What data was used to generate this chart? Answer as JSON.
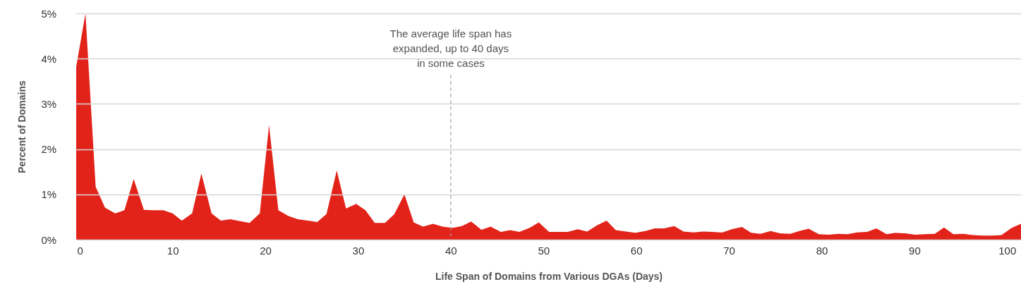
{
  "chart_data": {
    "type": "area",
    "xlabel": "Life Span of Domains from Various DGAs (Days)",
    "ylabel": "Percent of Domains",
    "x": [
      -0.4,
      0.6,
      1.7,
      2.7,
      3.8,
      4.8,
      5.8,
      6.9,
      7.9,
      9.0,
      10.0,
      11.0,
      12.1,
      13.1,
      14.2,
      15.2,
      16.2,
      17.3,
      18.3,
      19.4,
      20.4,
      21.4,
      22.5,
      23.5,
      24.6,
      25.6,
      26.6,
      27.7,
      28.7,
      29.8,
      30.8,
      31.8,
      32.9,
      33.9,
      35.0,
      36.0,
      37.0,
      38.1,
      39.1,
      40.2,
      41.2,
      42.2,
      43.3,
      44.3,
      45.4,
      46.4,
      47.4,
      48.5,
      49.5,
      50.6,
      51.6,
      52.6,
      53.7,
      54.7,
      55.8,
      56.8,
      57.8,
      58.9,
      59.9,
      61.0,
      62.0,
      63.0,
      64.1,
      65.1,
      66.2,
      67.2,
      68.2,
      69.3,
      70.3,
      71.4,
      72.4,
      73.4,
      74.5,
      75.5,
      76.6,
      77.6,
      78.6,
      79.7,
      80.7,
      81.8,
      82.8,
      83.8,
      84.9,
      85.9,
      87.0,
      88.0,
      89.0,
      90.1,
      91.1,
      92.2,
      93.2,
      94.2,
      95.3,
      96.3,
      97.4,
      98.4,
      99.4,
      100.5,
      101.5
    ],
    "series": [
      {
        "color": "#e2231a",
        "values": [
          3.82,
          5.0,
          1.17,
          0.71,
          0.58,
          0.65,
          1.34,
          0.66,
          0.65,
          0.65,
          0.58,
          0.42,
          0.58,
          1.46,
          0.58,
          0.42,
          0.45,
          0.41,
          0.37,
          0.58,
          2.53,
          0.65,
          0.52,
          0.45,
          0.42,
          0.39,
          0.57,
          1.53,
          0.69,
          0.79,
          0.65,
          0.37,
          0.37,
          0.56,
          1.0,
          0.38,
          0.29,
          0.35,
          0.29,
          0.26,
          0.3,
          0.4,
          0.22,
          0.29,
          0.17,
          0.21,
          0.17,
          0.26,
          0.38,
          0.17,
          0.17,
          0.17,
          0.23,
          0.18,
          0.32,
          0.42,
          0.21,
          0.18,
          0.15,
          0.19,
          0.25,
          0.25,
          0.3,
          0.18,
          0.16,
          0.18,
          0.17,
          0.16,
          0.23,
          0.28,
          0.15,
          0.13,
          0.19,
          0.14,
          0.13,
          0.19,
          0.24,
          0.12,
          0.11,
          0.13,
          0.12,
          0.16,
          0.17,
          0.25,
          0.12,
          0.15,
          0.14,
          0.11,
          0.12,
          0.13,
          0.27,
          0.12,
          0.13,
          0.1,
          0.09,
          0.09,
          0.1,
          0.26,
          0.35
        ]
      }
    ],
    "xlim": [
      -0.4,
      101.5
    ],
    "xticks": [
      0,
      10,
      20,
      30,
      40,
      50,
      60,
      70,
      80,
      90,
      100
    ],
    "ylim": [
      0,
      5
    ],
    "yticks": [
      {
        "value": 0,
        "label": "0%"
      },
      {
        "value": 1,
        "label": "1%"
      },
      {
        "value": 2,
        "label": "2%"
      },
      {
        "value": 3,
        "label": "3%"
      },
      {
        "value": 4,
        "label": "4%"
      },
      {
        "value": 5,
        "label": "5%"
      }
    ],
    "grid": "y",
    "ref_lines": [
      {
        "axis": "x",
        "value": 40,
        "label": "The average life span has expanded, up to 40 days in some cases",
        "color": "#a0a0a0",
        "line_style": "dashed"
      }
    ]
  }
}
